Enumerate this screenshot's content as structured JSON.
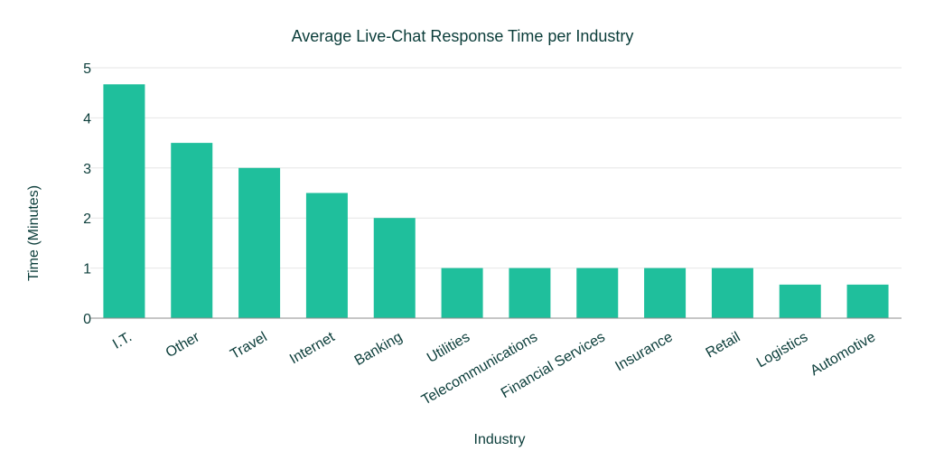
{
  "chart_data": {
    "type": "bar",
    "title": "Average Live-Chat Response Time per Industry",
    "xlabel": "Industry",
    "ylabel": "Time (Minutes)",
    "categories": [
      "I.T.",
      "Other",
      "Travel",
      "Internet",
      "Banking",
      "Utilities",
      "Telecommunications",
      "Financial Services",
      "Insurance",
      "Retail",
      "Logistics",
      "Automotive"
    ],
    "values": [
      4.67,
      3.5,
      3.0,
      2.5,
      2.0,
      1.0,
      1.0,
      1.0,
      1.0,
      1.0,
      0.67,
      0.67
    ],
    "ylim": [
      0,
      5
    ],
    "yticks": [
      "0",
      "1",
      "2",
      "3",
      "4",
      "5"
    ],
    "grid": true,
    "legend": "none",
    "bar_color": "#1fbf9c"
  }
}
